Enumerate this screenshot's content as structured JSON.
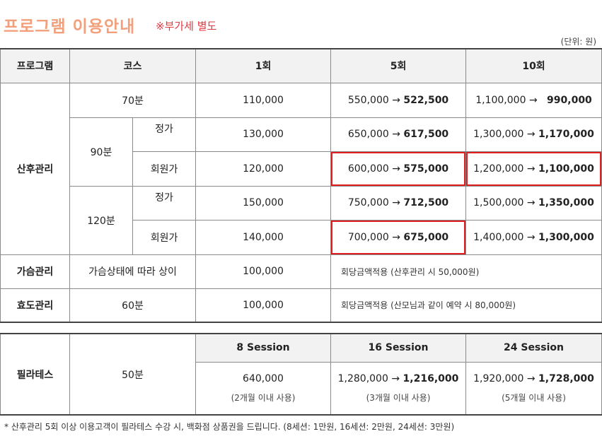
{
  "title": "프로그램 이용안내",
  "vat_note": "※부가세 별도",
  "unit": "(단위: 원)",
  "headers": {
    "program": "프로그램",
    "course": "코스",
    "c1": "1회",
    "c5": "5회",
    "c10": "10회"
  },
  "postpartum": {
    "label": "산후관리",
    "row70": {
      "course": "70분",
      "p1": "110,000",
      "p5_old": "550,000",
      "p5_new": "522,500",
      "p10_old": "1,100,000",
      "p10_new": "990,000"
    },
    "g90": "90분",
    "row90_reg": {
      "type": "정가",
      "p1": "130,000",
      "p5_old": "650,000",
      "p5_new": "617,500",
      "p10_old": "1,300,000",
      "p10_new": "1,170,000"
    },
    "row90_mem": {
      "type": "회원가",
      "p1": "120,000",
      "p5_old": "600,000",
      "p5_new": "575,000",
      "p10_old": "1,200,000",
      "p10_new": "1,100,000"
    },
    "g120": "120분",
    "row120_reg": {
      "type": "정가",
      "p1": "150,000",
      "p5_old": "750,000",
      "p5_new": "712,500",
      "p10_old": "1,500,000",
      "p10_new": "1,350,000"
    },
    "row120_mem": {
      "type": "회원가",
      "p1": "140,000",
      "p5_old": "700,000",
      "p5_new": "675,000",
      "p10_old": "1,400,000",
      "p10_new": "1,300,000"
    }
  },
  "breast": {
    "label": "가슴관리",
    "course": "가슴상태에 따라 상이",
    "p1": "100,000",
    "note": "회당금액적용  (산후관리 시 50,000원)"
  },
  "hyodo": {
    "label": "효도관리",
    "course": "60분",
    "p1": "100,000",
    "note": "회당금액적용  (산모님과 같이 예약 시 80,000원)"
  },
  "arrow": "→",
  "pilates": {
    "label": "필라테스",
    "course": "50분",
    "h8": "8 Session",
    "h16": "16 Session",
    "h24": "24 Session",
    "p8": "640,000",
    "u8": "(2개월 이내 사용)",
    "p16_old": "1,280,000",
    "p16_new": "1,216,000",
    "u16": "(3개월 이내 사용)",
    "p24_old": "1,920,000",
    "p24_new": "1,728,000",
    "u24": "(5개월 이내 사용)"
  },
  "footnote": "* 산후관리 5회 이상 이용고객이 필라테스 수강 시, 백화점 상품권을 드립니다. (8세션: 1만원, 16세션: 2만원, 24세션: 3만원)"
}
